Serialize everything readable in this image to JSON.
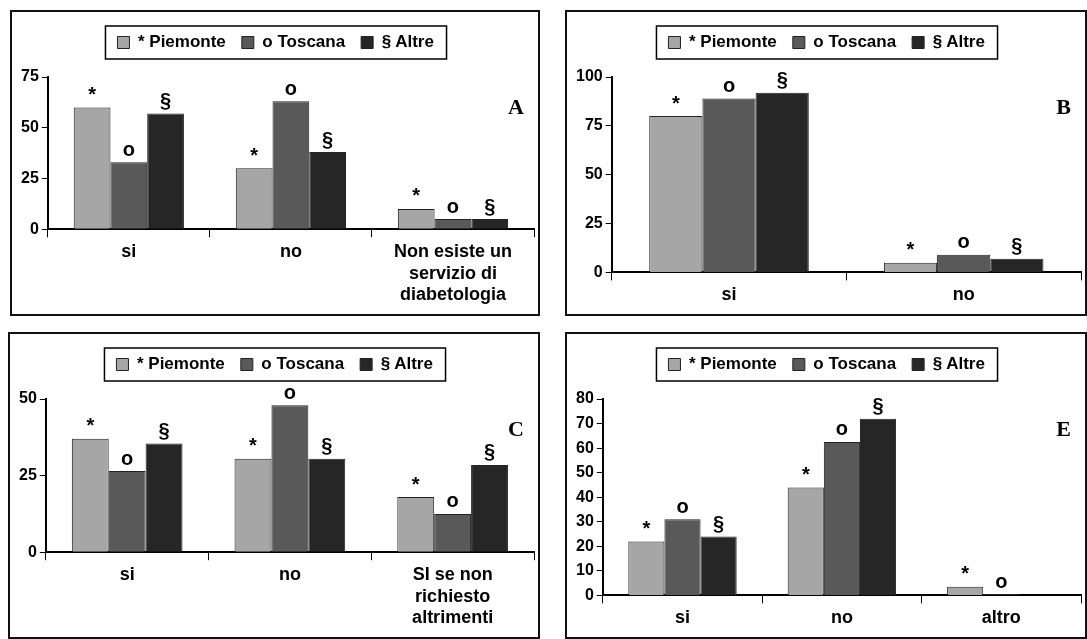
{
  "chart_data": [
    {
      "type": "bar",
      "categories": [
        "si",
        "no",
        "Non esiste un servizio di diabetologia"
      ],
      "series": [
        {
          "name": "* Piemonte",
          "color": "#a6a6a6",
          "values": [
            60,
            30,
            10
          ],
          "value_labels": [
            "*",
            "*",
            "*"
          ]
        },
        {
          "name": "o Toscana",
          "color": "#595959",
          "values": [
            33,
            63,
            5
          ],
          "value_labels": [
            "o",
            "o",
            "o"
          ]
        },
        {
          "name": "§ Altre",
          "color": "#262626",
          "values": [
            57,
            38,
            5
          ],
          "value_labels": [
            "§",
            "§",
            "§"
          ]
        }
      ],
      "ylim": [
        0,
        75
      ],
      "yticks": [
        0,
        25,
        50,
        75
      ],
      "grid": false,
      "legend": "top",
      "annotations": [
        "A"
      ]
    },
    {
      "type": "bar",
      "categories": [
        "si",
        "no"
      ],
      "series": [
        {
          "name": "* Piemonte",
          "color": "#a6a6a6",
          "values": [
            80,
            5
          ],
          "value_labels": [
            "*",
            "*"
          ]
        },
        {
          "name": "o Toscana",
          "color": "#595959",
          "values": [
            89,
            9
          ],
          "value_labels": [
            "o",
            "o"
          ]
        },
        {
          "name": "§ Altre",
          "color": "#262626",
          "values": [
            92,
            7
          ],
          "value_labels": [
            "§",
            "§"
          ]
        }
      ],
      "ylim": [
        0,
        100
      ],
      "yticks": [
        0,
        25,
        50,
        75,
        100
      ],
      "grid": false,
      "legend": "top",
      "annotations": [
        "B"
      ]
    },
    {
      "type": "bar",
      "categories": [
        "si",
        "no",
        "SI se non richiesto altrimenti"
      ],
      "series": [
        {
          "name": "* Piemonte",
          "color": "#a6a6a6",
          "values": [
            37,
            30.5,
            18
          ],
          "value_labels": [
            "*",
            "*",
            "*"
          ]
        },
        {
          "name": "o Toscana",
          "color": "#595959",
          "values": [
            26.5,
            48,
            12.5
          ],
          "value_labels": [
            "o",
            "o",
            "o"
          ]
        },
        {
          "name": "§ Altre",
          "color": "#262626",
          "values": [
            35.5,
            30.5,
            28.5
          ],
          "value_labels": [
            "§",
            "§",
            "§"
          ]
        }
      ],
      "ylim": [
        0,
        50
      ],
      "yticks": [
        0,
        25,
        50
      ],
      "grid": false,
      "legend": "top",
      "annotations": [
        "C"
      ]
    },
    {
      "type": "bar",
      "categories": [
        "si",
        "no",
        "altro"
      ],
      "series": [
        {
          "name": "* Piemonte",
          "color": "#a6a6a6",
          "values": [
            22,
            44,
            3.5
          ],
          "value_labels": [
            "*",
            "*",
            "*"
          ]
        },
        {
          "name": "o Toscana",
          "color": "#595959",
          "values": [
            31,
            62.5,
            0.5
          ],
          "value_labels": [
            "o",
            "o",
            "o"
          ]
        },
        {
          "name": "§ Altre",
          "color": "#262626",
          "values": [
            24,
            72,
            null
          ],
          "value_labels": [
            "§",
            "§",
            null
          ]
        }
      ],
      "ylim": [
        0,
        80
      ],
      "yticks": [
        0,
        10,
        20,
        30,
        40,
        50,
        60,
        70,
        80
      ],
      "grid": false,
      "legend": "top",
      "annotations": [
        "E"
      ]
    }
  ]
}
